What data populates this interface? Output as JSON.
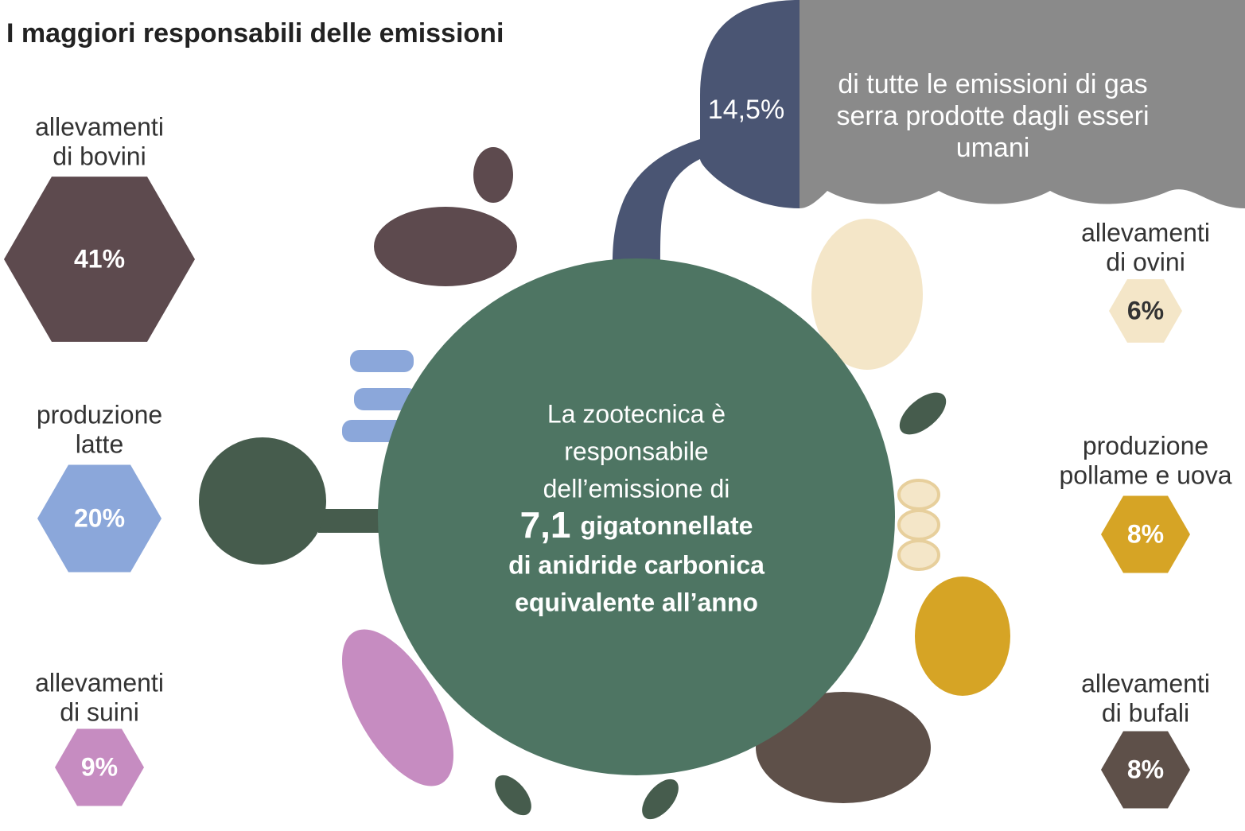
{
  "title": "I maggiori responsabili delle emissioni",
  "cloud": {
    "percent": "14,5%",
    "text": [
      "di tutte le emissioni di gas",
      "serra prodotte dagli esseri",
      "umani"
    ]
  },
  "center": {
    "lines": [
      "La zootecnica è",
      "responsabile",
      "dell’emissione di"
    ],
    "highlight": "7,1",
    "highlight_rest": "gigatonnellate",
    "bold_lines": [
      "di anidride carbonica",
      "equivalente all’anno"
    ]
  },
  "groups": [
    {
      "label": [
        "allevamenti",
        "di bovini"
      ],
      "value": "41%",
      "color": "#5d4a4e"
    },
    {
      "label": [
        "produzione",
        "latte"
      ],
      "value": "20%",
      "color": "#8ba7da"
    },
    {
      "label": [
        "allevamenti",
        "di suini"
      ],
      "value": "9%",
      "color": "#c68cc1"
    },
    {
      "label": [
        "allevamenti",
        "di ovini"
      ],
      "value": "6%",
      "color": "#f4e6c8"
    },
    {
      "label": [
        "produzione",
        "pollame e uova"
      ],
      "value": "8%",
      "color": "#d6a425"
    },
    {
      "label": [
        "allevamenti",
        "di bufali"
      ],
      "value": "8%",
      "color": "#5e5049"
    }
  ]
}
